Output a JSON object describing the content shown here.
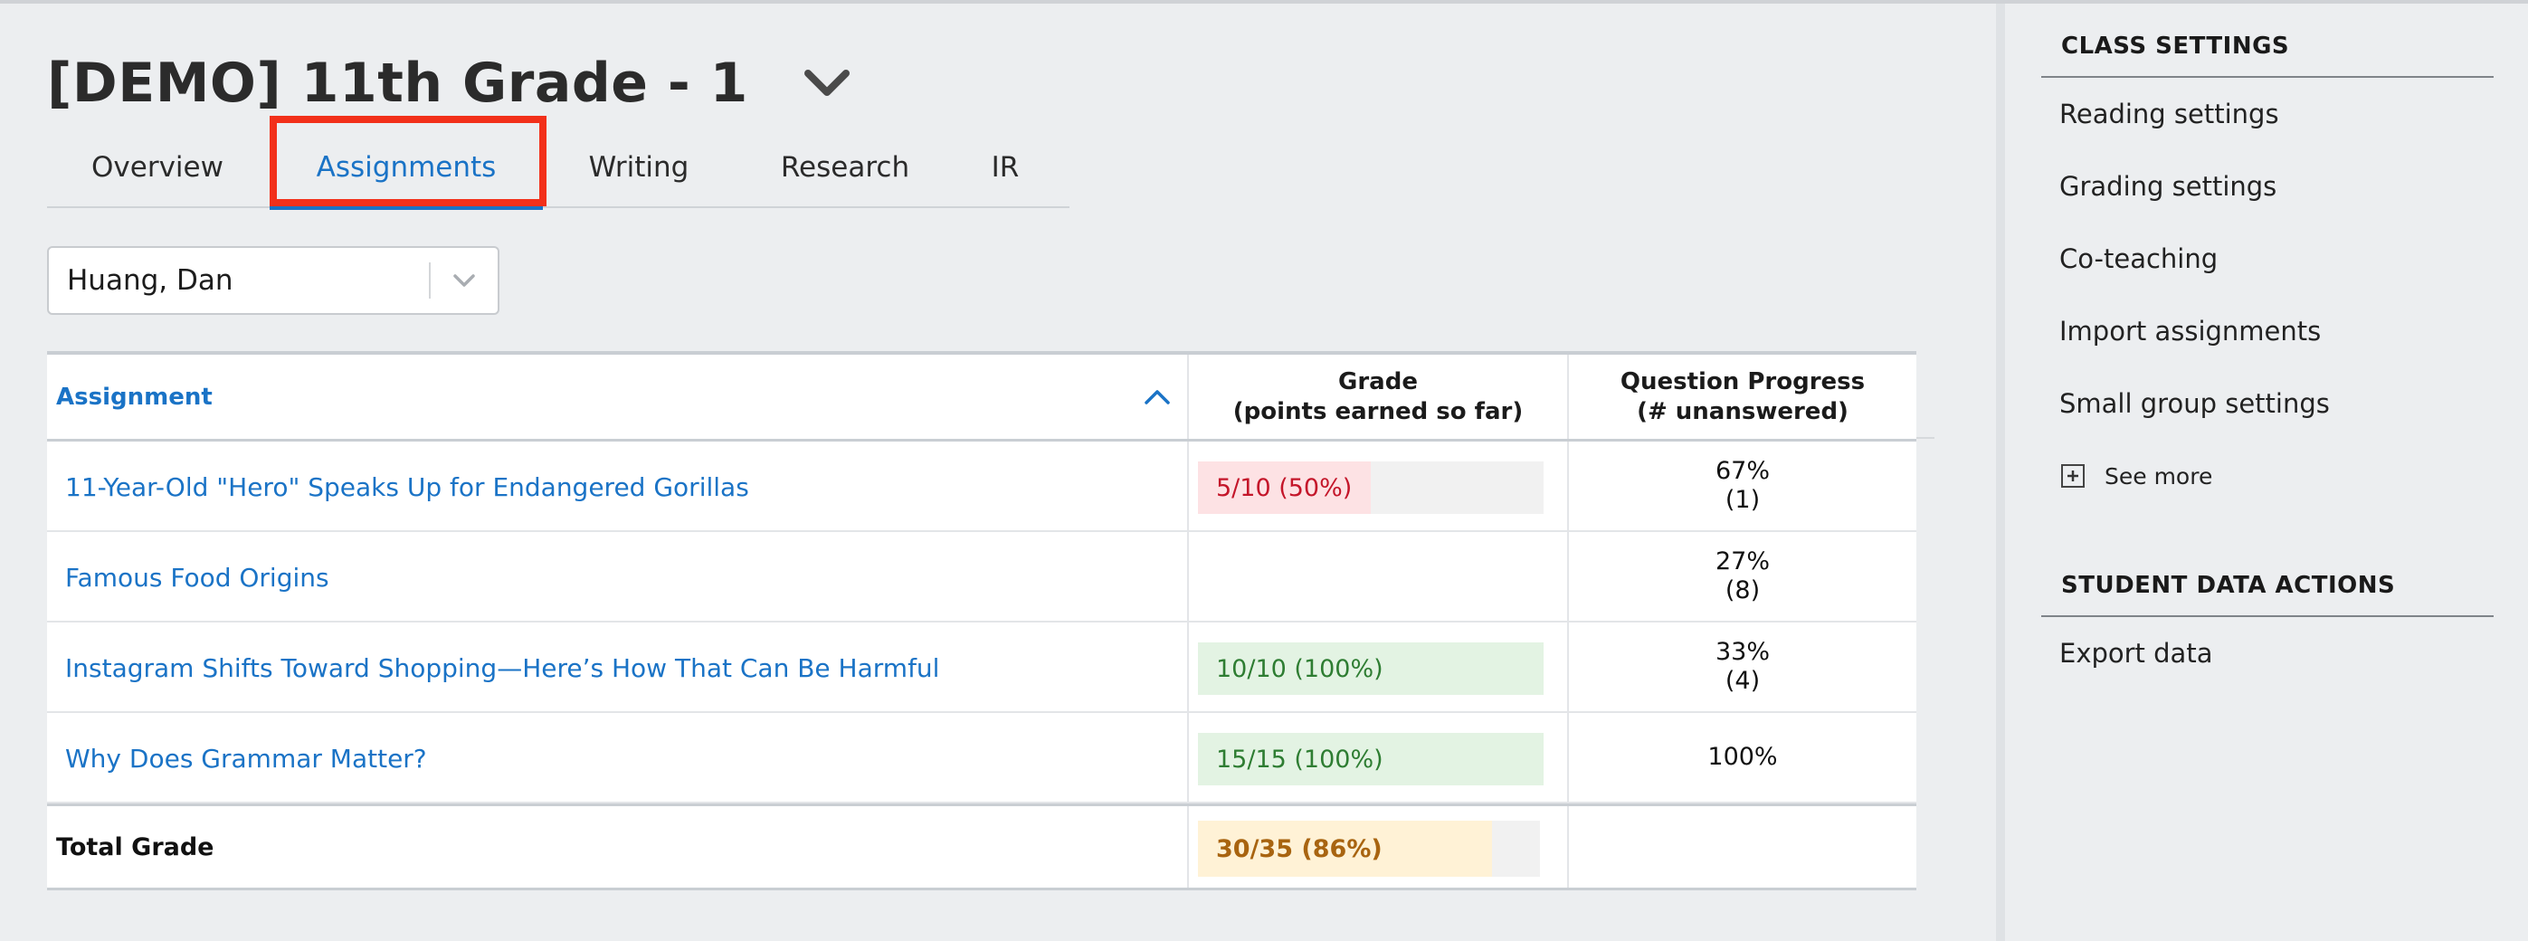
{
  "header": {
    "title": "[DEMO] 11th Grade - 1",
    "title_dropdown_icon": "chevron-down-icon"
  },
  "tabs": [
    {
      "label": "Overview",
      "active": false
    },
    {
      "label": "Assignments",
      "active": true
    },
    {
      "label": "Writing",
      "active": false
    },
    {
      "label": "Research",
      "active": false
    },
    {
      "label": "IR",
      "active": false
    }
  ],
  "student_select": {
    "value": "Huang, Dan",
    "icon": "chevron-down-icon"
  },
  "table": {
    "headers": {
      "assignment": "Assignment",
      "grade_line1": "Grade",
      "grade_line2": "(points earned so far)",
      "progress_line1": "Question Progress",
      "progress_line2": "(# unanswered)",
      "sort_icon": "chevron-up-icon"
    },
    "rows": [
      {
        "assignment": "11-Year-Old \"Hero\" Speaks Up for Endangered Gorillas",
        "grade": "5/10 (50%)",
        "grade_fraction": 0.5,
        "grade_status": "low",
        "progress_pct": "67%",
        "unanswered": "(1)"
      },
      {
        "assignment": "Famous Food Origins",
        "grade": "",
        "grade_fraction": 0,
        "grade_status": "none",
        "progress_pct": "27%",
        "unanswered": "(8)"
      },
      {
        "assignment": "Instagram Shifts Toward Shopping—Here’s How That Can Be Harmful",
        "grade": "10/10 (100%)",
        "grade_fraction": 1.0,
        "grade_status": "high",
        "progress_pct": "33%",
        "unanswered": "(4)"
      },
      {
        "assignment": "Why Does Grammar Matter?",
        "grade": "15/15 (100%)",
        "grade_fraction": 1.0,
        "grade_status": "high",
        "progress_pct": "100%",
        "unanswered": ""
      }
    ],
    "total": {
      "label": "Total Grade",
      "grade": "30/35 (86%)",
      "grade_fraction": 0.86,
      "grade_status": "mid"
    }
  },
  "colors": {
    "accent": "#1a73c6",
    "low_fill": "#fde2e4",
    "low_text": "#c4162a",
    "high_fill": "#e3f3e3",
    "high_text": "#2e7d32",
    "mid_fill": "#fff2d6",
    "mid_text": "#a86410",
    "highlight_box": "#f2301a"
  },
  "sidebar": {
    "class_settings": {
      "heading": "CLASS SETTINGS",
      "items": [
        "Reading settings",
        "Grading settings",
        "Co-teaching",
        "Import assignments",
        "Small group settings"
      ],
      "see_more": "See more",
      "see_more_icon": "plus-square-icon"
    },
    "student_data_actions": {
      "heading": "STUDENT DATA ACTIONS",
      "items": [
        "Export data"
      ]
    }
  }
}
